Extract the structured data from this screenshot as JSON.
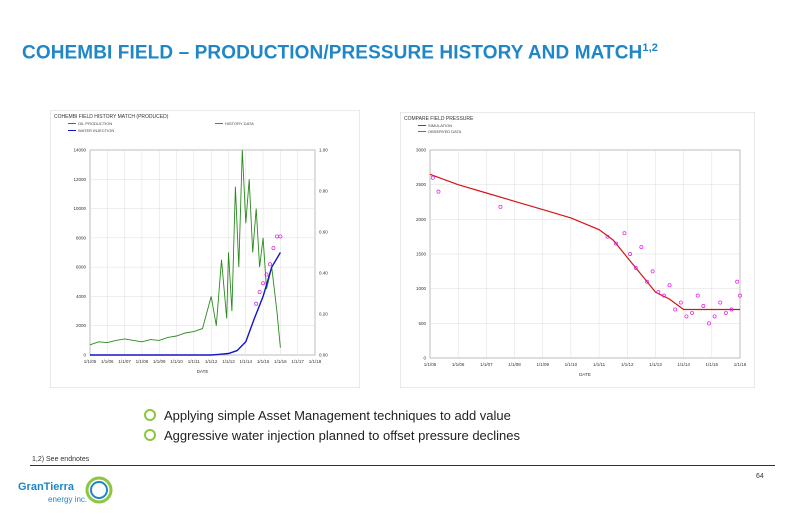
{
  "title": {
    "main": "COHEMBI FIELD – PRODUCTION/PRESSURE HISTORY AND MATCH",
    "sup": "1,2"
  },
  "bullets": [
    "Applying simple Asset Management techniques to add value",
    "Aggressive water injection planned to offset pressure declines"
  ],
  "footnote": "1,2) See endnotes",
  "page_number": "64",
  "logo": {
    "name": "GranTierra",
    "sub": "energy inc."
  },
  "colors": {
    "title": "#1f86c8",
    "bullet": "#8dc63f",
    "green": "#2a8a1e",
    "blue": "#1515c8",
    "magenta": "#e020e0",
    "red": "#d81515"
  },
  "chart_data": [
    {
      "type": "line",
      "title": "COHEMBI FIELD HISTORY MATCH (PRODUCED)",
      "legend": [
        "OIL PRODUCTION",
        "WATER INJECTION",
        "HISTORY DATA"
      ],
      "x": [
        "1/1/05",
        "1/1/06",
        "1/1/07",
        "1/1/08",
        "1/1/09",
        "1/1/10",
        "1/1/11",
        "1/1/12",
        "1/1/13",
        "1/1/14",
        "1/1/15",
        "1/1/16",
        "1/1/17",
        "1/1/18"
      ],
      "y_left_ticks": [
        "0",
        "2000",
        "4000",
        "6000",
        "8000",
        "10000",
        "12000",
        "14000"
      ],
      "y_right_ticks": [
        "0.00",
        "0.20",
        "0.40",
        "0.60",
        "0.80",
        "1.00"
      ],
      "xlabel": "DATE",
      "ylim": [
        0,
        14000
      ],
      "y2lim": [
        0,
        1.0
      ],
      "series": [
        {
          "name": "OIL PRODUCTION",
          "axis": "left",
          "style": "line",
          "x": [
            2005.0,
            2005.5,
            2006.0,
            2006.5,
            2007.0,
            2007.5,
            2008.0,
            2008.5,
            2009.0,
            2009.5,
            2010.0,
            2010.5,
            2011.0,
            2011.5,
            2012.0,
            2012.3,
            2012.6,
            2012.9,
            2013.0,
            2013.2,
            2013.4,
            2013.6,
            2013.8,
            2014.0,
            2014.2,
            2014.4,
            2014.6,
            2014.8,
            2015.0,
            2015.2,
            2015.5,
            2015.8,
            2016.0
          ],
          "values": [
            700,
            900,
            850,
            1000,
            1100,
            1000,
            900,
            1050,
            1000,
            1200,
            1300,
            1500,
            1600,
            1800,
            4000,
            2000,
            6500,
            2500,
            7000,
            3000,
            11500,
            6000,
            14000,
            9000,
            12000,
            7000,
            10000,
            6000,
            8000,
            4500,
            6000,
            3000,
            500
          ]
        },
        {
          "name": "WATER INJECTION",
          "axis": "left",
          "style": "line",
          "x": [
            2005.0,
            2006.0,
            2007.0,
            2008.0,
            2009.0,
            2010.0,
            2011.0,
            2012.0,
            2012.5,
            2013.0,
            2013.5,
            2014.0,
            2014.5,
            2015.0,
            2015.5,
            2016.0
          ],
          "values": [
            0,
            0,
            0,
            0,
            0,
            0,
            0,
            0,
            50,
            100,
            300,
            900,
            2500,
            4000,
            6000,
            7000
          ]
        },
        {
          "name": "HISTORY DATA",
          "axis": "left",
          "style": "points",
          "x": [
            2014.6,
            2014.8,
            2015.0,
            2015.2,
            2015.4,
            2015.6,
            2015.8,
            2016.0
          ],
          "values": [
            3500,
            4300,
            4900,
            5500,
            6200,
            7300,
            8100,
            8100
          ]
        }
      ]
    },
    {
      "type": "scatter",
      "title": "COMPARE FIELD PRESSURE",
      "legend": [
        "SIMULATION",
        "OBSERVED DATA"
      ],
      "x": [
        "1/1/05",
        "1/1/06",
        "1/1/07",
        "1/1/08",
        "1/1/09",
        "1/1/10",
        "1/1/11",
        "1/1/12",
        "1/1/13",
        "1/1/14",
        "1/1/15",
        "1/1/16"
      ],
      "y_ticks": [
        "0",
        "500",
        "1000",
        "1500",
        "2000",
        "2500",
        "3000"
      ],
      "xlabel": "DATE",
      "ylim": [
        0,
        3000
      ],
      "series": [
        {
          "name": "SIMULATION",
          "style": "line",
          "x": [
            2005.0,
            2006.0,
            2007.0,
            2008.0,
            2009.0,
            2010.0,
            2011.0,
            2011.5,
            2012.0,
            2012.5,
            2013.0,
            2013.5,
            2014.0,
            2014.5,
            2015.0,
            2015.5,
            2016.0
          ],
          "values": [
            2650,
            2500,
            2380,
            2260,
            2140,
            2020,
            1850,
            1700,
            1450,
            1200,
            950,
            850,
            700,
            700,
            700,
            700,
            700
          ]
        },
        {
          "name": "OBSERVED DATA",
          "style": "points",
          "x": [
            2005.1,
            2005.3,
            2007.5,
            2011.3,
            2011.6,
            2011.9,
            2012.1,
            2012.3,
            2012.5,
            2012.7,
            2012.9,
            2013.1,
            2013.3,
            2013.5,
            2013.7,
            2013.9,
            2014.1,
            2014.3,
            2014.5,
            2014.7,
            2014.9,
            2015.1,
            2015.3,
            2015.5,
            2015.7,
            2015.9,
            2016.0
          ],
          "values": [
            2600,
            2400,
            2180,
            1750,
            1650,
            1800,
            1500,
            1300,
            1600,
            1100,
            1250,
            950,
            900,
            1050,
            700,
            800,
            600,
            650,
            900,
            750,
            500,
            600,
            800,
            650,
            700,
            1100,
            900
          ]
        }
      ]
    }
  ]
}
